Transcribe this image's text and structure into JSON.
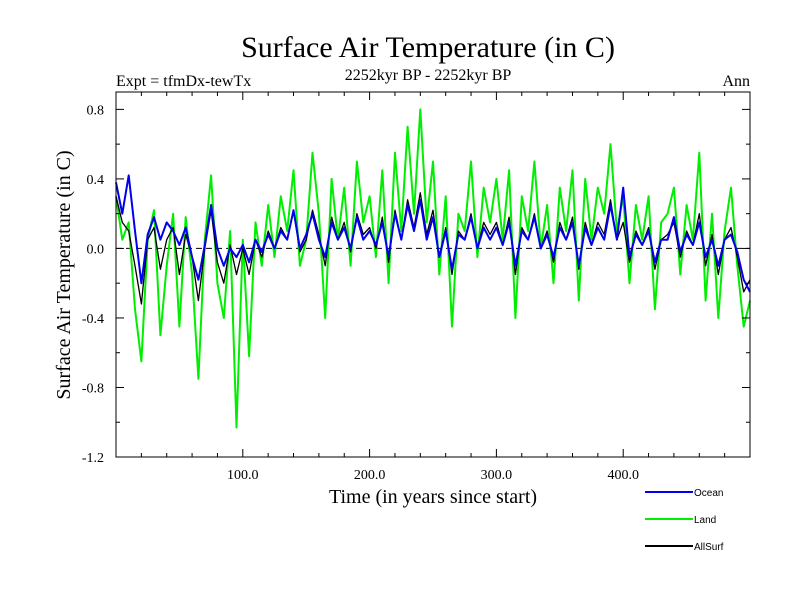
{
  "chart_data": {
    "type": "line",
    "title": "Surface Air Temperature (in C)",
    "subtitle": "2252kyr BP - 2252kyr BP",
    "left_label": "Expt = tfmDx-tewTx",
    "right_label": "Ann",
    "xlabel": "Time (in years since start)",
    "ylabel": "Surface Air Temperature (in C)",
    "xlim": [
      0,
      500
    ],
    "ylim": [
      -1.2,
      0.9
    ],
    "x_ticks": [
      100,
      200,
      300,
      400
    ],
    "x_tick_labels": [
      "100.0",
      "200.0",
      "300.0",
      "400.0"
    ],
    "y_ticks": [
      -1.2,
      -0.8,
      -0.4,
      0.0,
      0.4,
      0.8
    ],
    "y_tick_labels": [
      "-1.2",
      "-0.8",
      "-0.4",
      "0.0",
      "0.4",
      "0.8"
    ],
    "zero_line": true,
    "series": [
      {
        "name": "Land",
        "color": "#00ee00",
        "x": [
          0,
          5,
          10,
          15,
          20,
          25,
          30,
          35,
          40,
          45,
          50,
          55,
          60,
          65,
          70,
          75,
          80,
          85,
          90,
          95,
          100,
          105,
          110,
          115,
          120,
          125,
          130,
          135,
          140,
          145,
          150,
          155,
          160,
          165,
          170,
          175,
          180,
          185,
          190,
          195,
          200,
          205,
          210,
          215,
          220,
          225,
          230,
          235,
          240,
          245,
          250,
          255,
          260,
          265,
          270,
          275,
          280,
          285,
          290,
          295,
          300,
          305,
          310,
          315,
          320,
          325,
          330,
          335,
          340,
          345,
          350,
          355,
          360,
          365,
          370,
          375,
          380,
          385,
          390,
          395,
          400,
          405,
          410,
          415,
          420,
          425,
          430,
          435,
          440,
          445,
          450,
          455,
          460,
          465,
          470,
          475,
          480,
          485,
          490,
          495,
          500
        ],
        "values": [
          0.3,
          0.05,
          0.15,
          -0.35,
          -0.65,
          0.05,
          0.22,
          -0.5,
          -0.1,
          0.2,
          -0.45,
          0.18,
          -0.15,
          -0.75,
          0.05,
          0.42,
          -0.2,
          -0.4,
          0.1,
          -1.03,
          0.05,
          -0.62,
          0.15,
          -0.1,
          0.25,
          -0.05,
          0.3,
          0.1,
          0.45,
          -0.1,
          0.05,
          0.55,
          0.2,
          -0.4,
          0.4,
          0.05,
          0.35,
          -0.1,
          0.5,
          0.15,
          0.3,
          -0.05,
          0.45,
          -0.2,
          0.55,
          0.1,
          0.7,
          0.2,
          0.8,
          0.15,
          0.5,
          -0.15,
          0.3,
          -0.45,
          0.2,
          0.1,
          0.5,
          -0.05,
          0.35,
          0.15,
          0.4,
          0.05,
          0.45,
          -0.4,
          0.3,
          0.1,
          0.5,
          0.0,
          0.25,
          -0.2,
          0.35,
          0.1,
          0.45,
          -0.3,
          0.4,
          0.05,
          0.35,
          0.2,
          0.6,
          0.1,
          0.3,
          -0.2,
          0.25,
          0.05,
          0.3,
          -0.35,
          0.15,
          0.2,
          0.35,
          -0.15,
          0.25,
          0.05,
          0.55,
          -0.3,
          0.2,
          -0.4,
          0.1,
          0.35,
          -0.1,
          -0.45,
          -0.3
        ]
      },
      {
        "name": "AllSurf",
        "color": "#000000",
        "x": [
          0,
          5,
          10,
          15,
          20,
          25,
          30,
          35,
          40,
          45,
          50,
          55,
          60,
          65,
          70,
          75,
          80,
          85,
          90,
          95,
          100,
          105,
          110,
          115,
          120,
          125,
          130,
          135,
          140,
          145,
          150,
          155,
          160,
          165,
          170,
          175,
          180,
          185,
          190,
          195,
          200,
          205,
          210,
          215,
          220,
          225,
          230,
          235,
          240,
          245,
          250,
          255,
          260,
          265,
          270,
          275,
          280,
          285,
          290,
          295,
          300,
          305,
          310,
          315,
          320,
          325,
          330,
          335,
          340,
          345,
          350,
          355,
          360,
          365,
          370,
          375,
          380,
          385,
          390,
          395,
          400,
          405,
          410,
          415,
          420,
          425,
          430,
          435,
          440,
          445,
          450,
          455,
          460,
          465,
          470,
          475,
          480,
          485,
          490,
          495,
          500
        ],
        "values": [
          0.3,
          0.15,
          0.1,
          -0.1,
          -0.32,
          0.05,
          0.12,
          -0.12,
          0.05,
          0.12,
          -0.15,
          0.08,
          -0.05,
          -0.3,
          0.0,
          0.22,
          -0.08,
          -0.2,
          0.02,
          -0.15,
          0.0,
          -0.15,
          0.05,
          -0.05,
          0.1,
          0.0,
          0.12,
          0.05,
          0.22,
          -0.02,
          0.05,
          0.22,
          0.08,
          -0.1,
          0.18,
          0.05,
          0.15,
          -0.02,
          0.2,
          0.08,
          0.12,
          0.0,
          0.18,
          -0.08,
          0.22,
          0.05,
          0.28,
          0.12,
          0.32,
          0.08,
          0.22,
          -0.05,
          0.12,
          -0.15,
          0.1,
          0.05,
          0.2,
          0.0,
          0.15,
          0.08,
          0.15,
          0.02,
          0.18,
          -0.15,
          0.12,
          0.05,
          0.2,
          0.0,
          0.1,
          -0.08,
          0.15,
          0.05,
          0.18,
          -0.12,
          0.15,
          0.02,
          0.15,
          0.08,
          0.28,
          0.05,
          0.15,
          -0.08,
          0.1,
          0.02,
          0.12,
          -0.12,
          0.05,
          0.08,
          0.15,
          -0.05,
          0.1,
          0.02,
          0.2,
          -0.1,
          0.08,
          -0.15,
          0.05,
          0.12,
          -0.05,
          -0.25,
          -0.18
        ]
      },
      {
        "name": "Ocean",
        "color": "#0000ee",
        "x": [
          0,
          5,
          10,
          15,
          20,
          25,
          30,
          35,
          40,
          45,
          50,
          55,
          60,
          65,
          70,
          75,
          80,
          85,
          90,
          95,
          100,
          105,
          110,
          115,
          120,
          125,
          130,
          135,
          140,
          145,
          150,
          155,
          160,
          165,
          170,
          175,
          180,
          185,
          190,
          195,
          200,
          205,
          210,
          215,
          220,
          225,
          230,
          235,
          240,
          245,
          250,
          255,
          260,
          265,
          270,
          275,
          280,
          285,
          290,
          295,
          300,
          305,
          310,
          315,
          320,
          325,
          330,
          335,
          340,
          345,
          350,
          355,
          360,
          365,
          370,
          375,
          380,
          385,
          390,
          395,
          400,
          405,
          410,
          415,
          420,
          425,
          430,
          435,
          440,
          445,
          450,
          455,
          460,
          465,
          470,
          475,
          480,
          485,
          490,
          495,
          500
        ],
        "values": [
          0.38,
          0.2,
          0.42,
          0.1,
          -0.2,
          0.08,
          0.18,
          0.05,
          0.15,
          0.1,
          0.02,
          0.12,
          -0.05,
          -0.18,
          0.02,
          0.25,
          0.0,
          -0.1,
          0.0,
          -0.05,
          0.02,
          -0.08,
          0.05,
          -0.02,
          0.08,
          0.0,
          0.1,
          0.05,
          0.22,
          0.0,
          0.08,
          0.2,
          0.05,
          -0.05,
          0.15,
          0.05,
          0.12,
          0.0,
          0.18,
          0.05,
          0.1,
          0.02,
          0.15,
          -0.05,
          0.2,
          0.05,
          0.25,
          0.1,
          0.28,
          0.05,
          0.18,
          -0.05,
          0.1,
          -0.12,
          0.08,
          0.05,
          0.18,
          0.0,
          0.12,
          0.05,
          0.12,
          0.02,
          0.15,
          -0.1,
          0.1,
          0.05,
          0.18,
          0.0,
          0.08,
          -0.05,
          0.12,
          0.05,
          0.15,
          -0.1,
          0.12,
          0.02,
          0.12,
          0.05,
          0.25,
          0.05,
          0.35,
          -0.05,
          0.08,
          0.02,
          0.1,
          -0.08,
          0.05,
          0.05,
          0.18,
          -0.02,
          0.08,
          0.02,
          0.15,
          -0.05,
          0.05,
          -0.1,
          0.05,
          0.08,
          -0.02,
          -0.18,
          -0.25
        ]
      }
    ],
    "legend": [
      {
        "name": "Ocean",
        "color": "#0000ee"
      },
      {
        "name": "Land",
        "color": "#00ee00"
      },
      {
        "name": "AllSurf",
        "color": "#000000"
      }
    ],
    "legend_placement": "bottom-right"
  }
}
